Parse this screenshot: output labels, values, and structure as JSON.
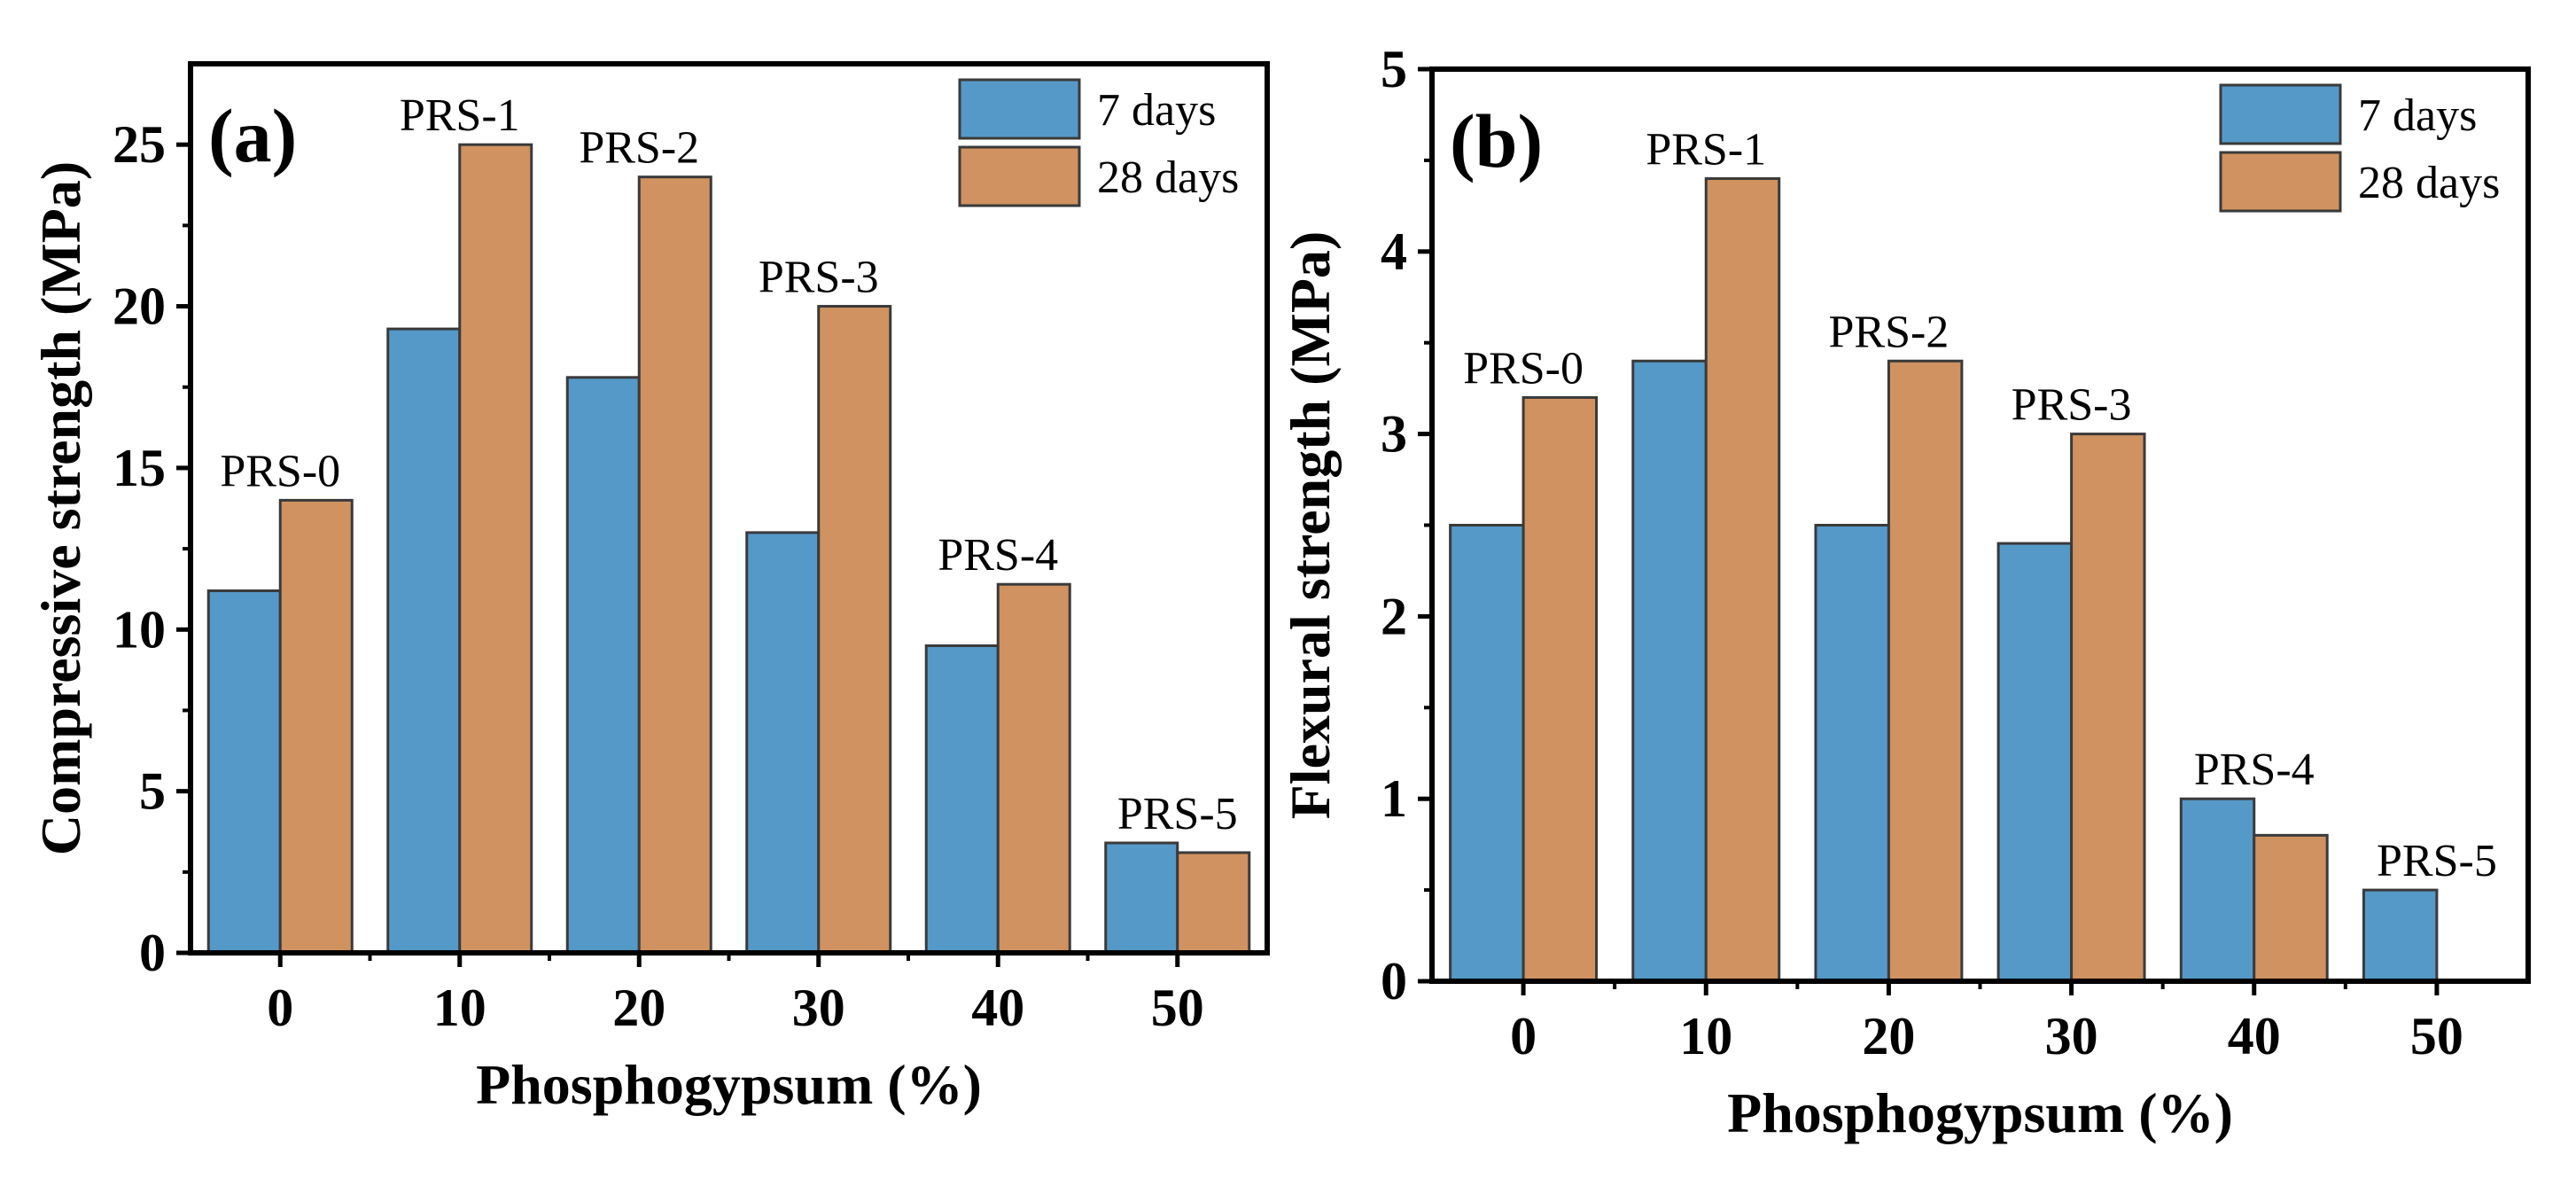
{
  "chart_data": [
    {
      "type": "bar",
      "panel_label": "(a)",
      "categories": [
        "0",
        "10",
        "20",
        "30",
        "40",
        "50"
      ],
      "series": [
        {
          "name": "7 days",
          "values": [
            11.2,
            19.3,
            17.8,
            13.0,
            9.5,
            3.4
          ]
        },
        {
          "name": "28 days",
          "values": [
            14.0,
            25.0,
            24.0,
            20.0,
            11.4,
            3.1
          ]
        }
      ],
      "bar_labels": [
        "PRS-0",
        "PRS-1",
        "PRS-2",
        "PRS-3",
        "PRS-4",
        "PRS-5"
      ],
      "xlabel": "Phosphogypsum (%)",
      "ylabel": "Compressive strength (MPa)",
      "ylim": [
        0,
        27.5
      ],
      "yticks": [
        0,
        5,
        10,
        15,
        20,
        25
      ],
      "legend_position": "top-right",
      "grid": false
    },
    {
      "type": "bar",
      "panel_label": "(b)",
      "categories": [
        "0",
        "10",
        "20",
        "30",
        "40",
        "50"
      ],
      "series": [
        {
          "name": "7 days",
          "values": [
            2.5,
            3.4,
            2.5,
            2.4,
            1.0,
            0.5
          ]
        },
        {
          "name": "28 days",
          "values": [
            3.2,
            4.4,
            3.4,
            3.0,
            0.8,
            0.0
          ]
        }
      ],
      "bar_labels": [
        "PRS-0",
        "PRS-1",
        "PRS-2",
        "PRS-3",
        "PRS-4",
        "PRS-5"
      ],
      "xlabel": "Phosphogypsum (%)",
      "ylabel": "Flexural strength (MPa)",
      "ylim": [
        0,
        5
      ],
      "yticks": [
        0,
        1,
        2,
        3,
        4,
        5
      ],
      "legend_position": "top-right",
      "grid": false
    }
  ],
  "colors": {
    "series_7_days": "#5599c8",
    "series_28_days": "#cf9260",
    "bar_edge": "#3a3a3a",
    "axis": "#000000"
  }
}
